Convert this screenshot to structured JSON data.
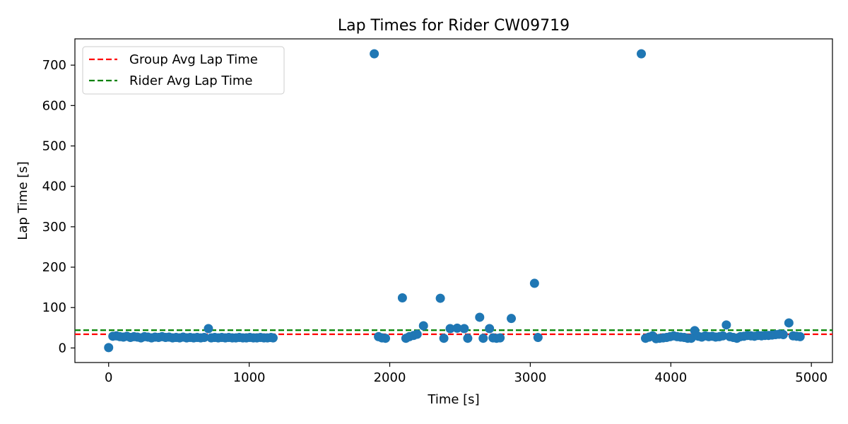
{
  "chart_data": {
    "type": "scatter",
    "title": "Lap Times for Rider CW09719",
    "xlabel": "Time [s]",
    "ylabel": "Lap Time [s]",
    "xlim": [
      -240,
      5150
    ],
    "ylim": [
      -36,
      765
    ],
    "xticks": [
      0,
      1000,
      2000,
      3000,
      4000,
      5000
    ],
    "yticks": [
      0,
      100,
      200,
      300,
      400,
      500,
      600,
      700
    ],
    "grid": false,
    "legend_position": "top-left",
    "point_color": "#1f77b4",
    "series": [
      {
        "x": [
          0,
          30,
          55,
          80,
          105,
          130,
          155,
          180,
          205,
          230,
          255,
          280,
          305,
          330,
          355,
          380,
          405,
          430,
          455,
          480,
          505,
          530,
          555,
          580,
          605,
          630,
          655,
          680,
          710,
          730,
          755,
          780,
          805,
          830,
          855,
          880,
          905,
          930,
          955,
          980,
          1005,
          1030,
          1055,
          1080,
          1105,
          1130,
          1155,
          1170,
          1890,
          1920,
          1945,
          1970,
          2090,
          2115,
          2140,
          2170,
          2195,
          2240,
          2360,
          2385,
          2430,
          2480,
          2530,
          2555,
          2640,
          2665,
          2710,
          2735,
          2760,
          2785,
          2865,
          3030,
          3055,
          3790,
          3820,
          3845,
          3870,
          3895,
          3920,
          3945,
          3970,
          3995,
          4020,
          4045,
          4070,
          4095,
          4120,
          4145,
          4170,
          4195,
          4220,
          4245,
          4270,
          4295,
          4320,
          4345,
          4370,
          4395,
          4420,
          4445,
          4470,
          4495,
          4520,
          4545,
          4570,
          4595,
          4620,
          4645,
          4670,
          4695,
          4720,
          4745,
          4770,
          4800,
          4840,
          4870,
          4895,
          4920
        ],
        "y": [
          1,
          29,
          30,
          28,
          27,
          29,
          26,
          28,
          27,
          25,
          28,
          27,
          25,
          27,
          26,
          28,
          26,
          27,
          25,
          26,
          25,
          27,
          25,
          26,
          25,
          26,
          25,
          26,
          48,
          25,
          26,
          25,
          26,
          25,
          26,
          25,
          25,
          26,
          25,
          25,
          26,
          25,
          25,
          26,
          25,
          25,
          26,
          25,
          728,
          28,
          25,
          24,
          124,
          24,
          28,
          31,
          34,
          55,
          123,
          24,
          48,
          49,
          48,
          24,
          76,
          24,
          48,
          25,
          24,
          25,
          73,
          160,
          26,
          728,
          24,
          27,
          30,
          23,
          24,
          25,
          26,
          28,
          30,
          28,
          27,
          26,
          24,
          24,
          43,
          29,
          27,
          30,
          28,
          29,
          27,
          28,
          30,
          57,
          28,
          26,
          24,
          28,
          29,
          31,
          30,
          29,
          31,
          30,
          31,
          31,
          32,
          33,
          34,
          33,
          62,
          30,
          29,
          28
        ]
      }
    ],
    "reference_lines": [
      {
        "name": "Group Avg Lap Time",
        "y": 34,
        "color": "#ff0000",
        "style": "dashed"
      },
      {
        "name": "Rider Avg Lap Time",
        "y": 44,
        "color": "#008000",
        "style": "dashed"
      }
    ]
  }
}
